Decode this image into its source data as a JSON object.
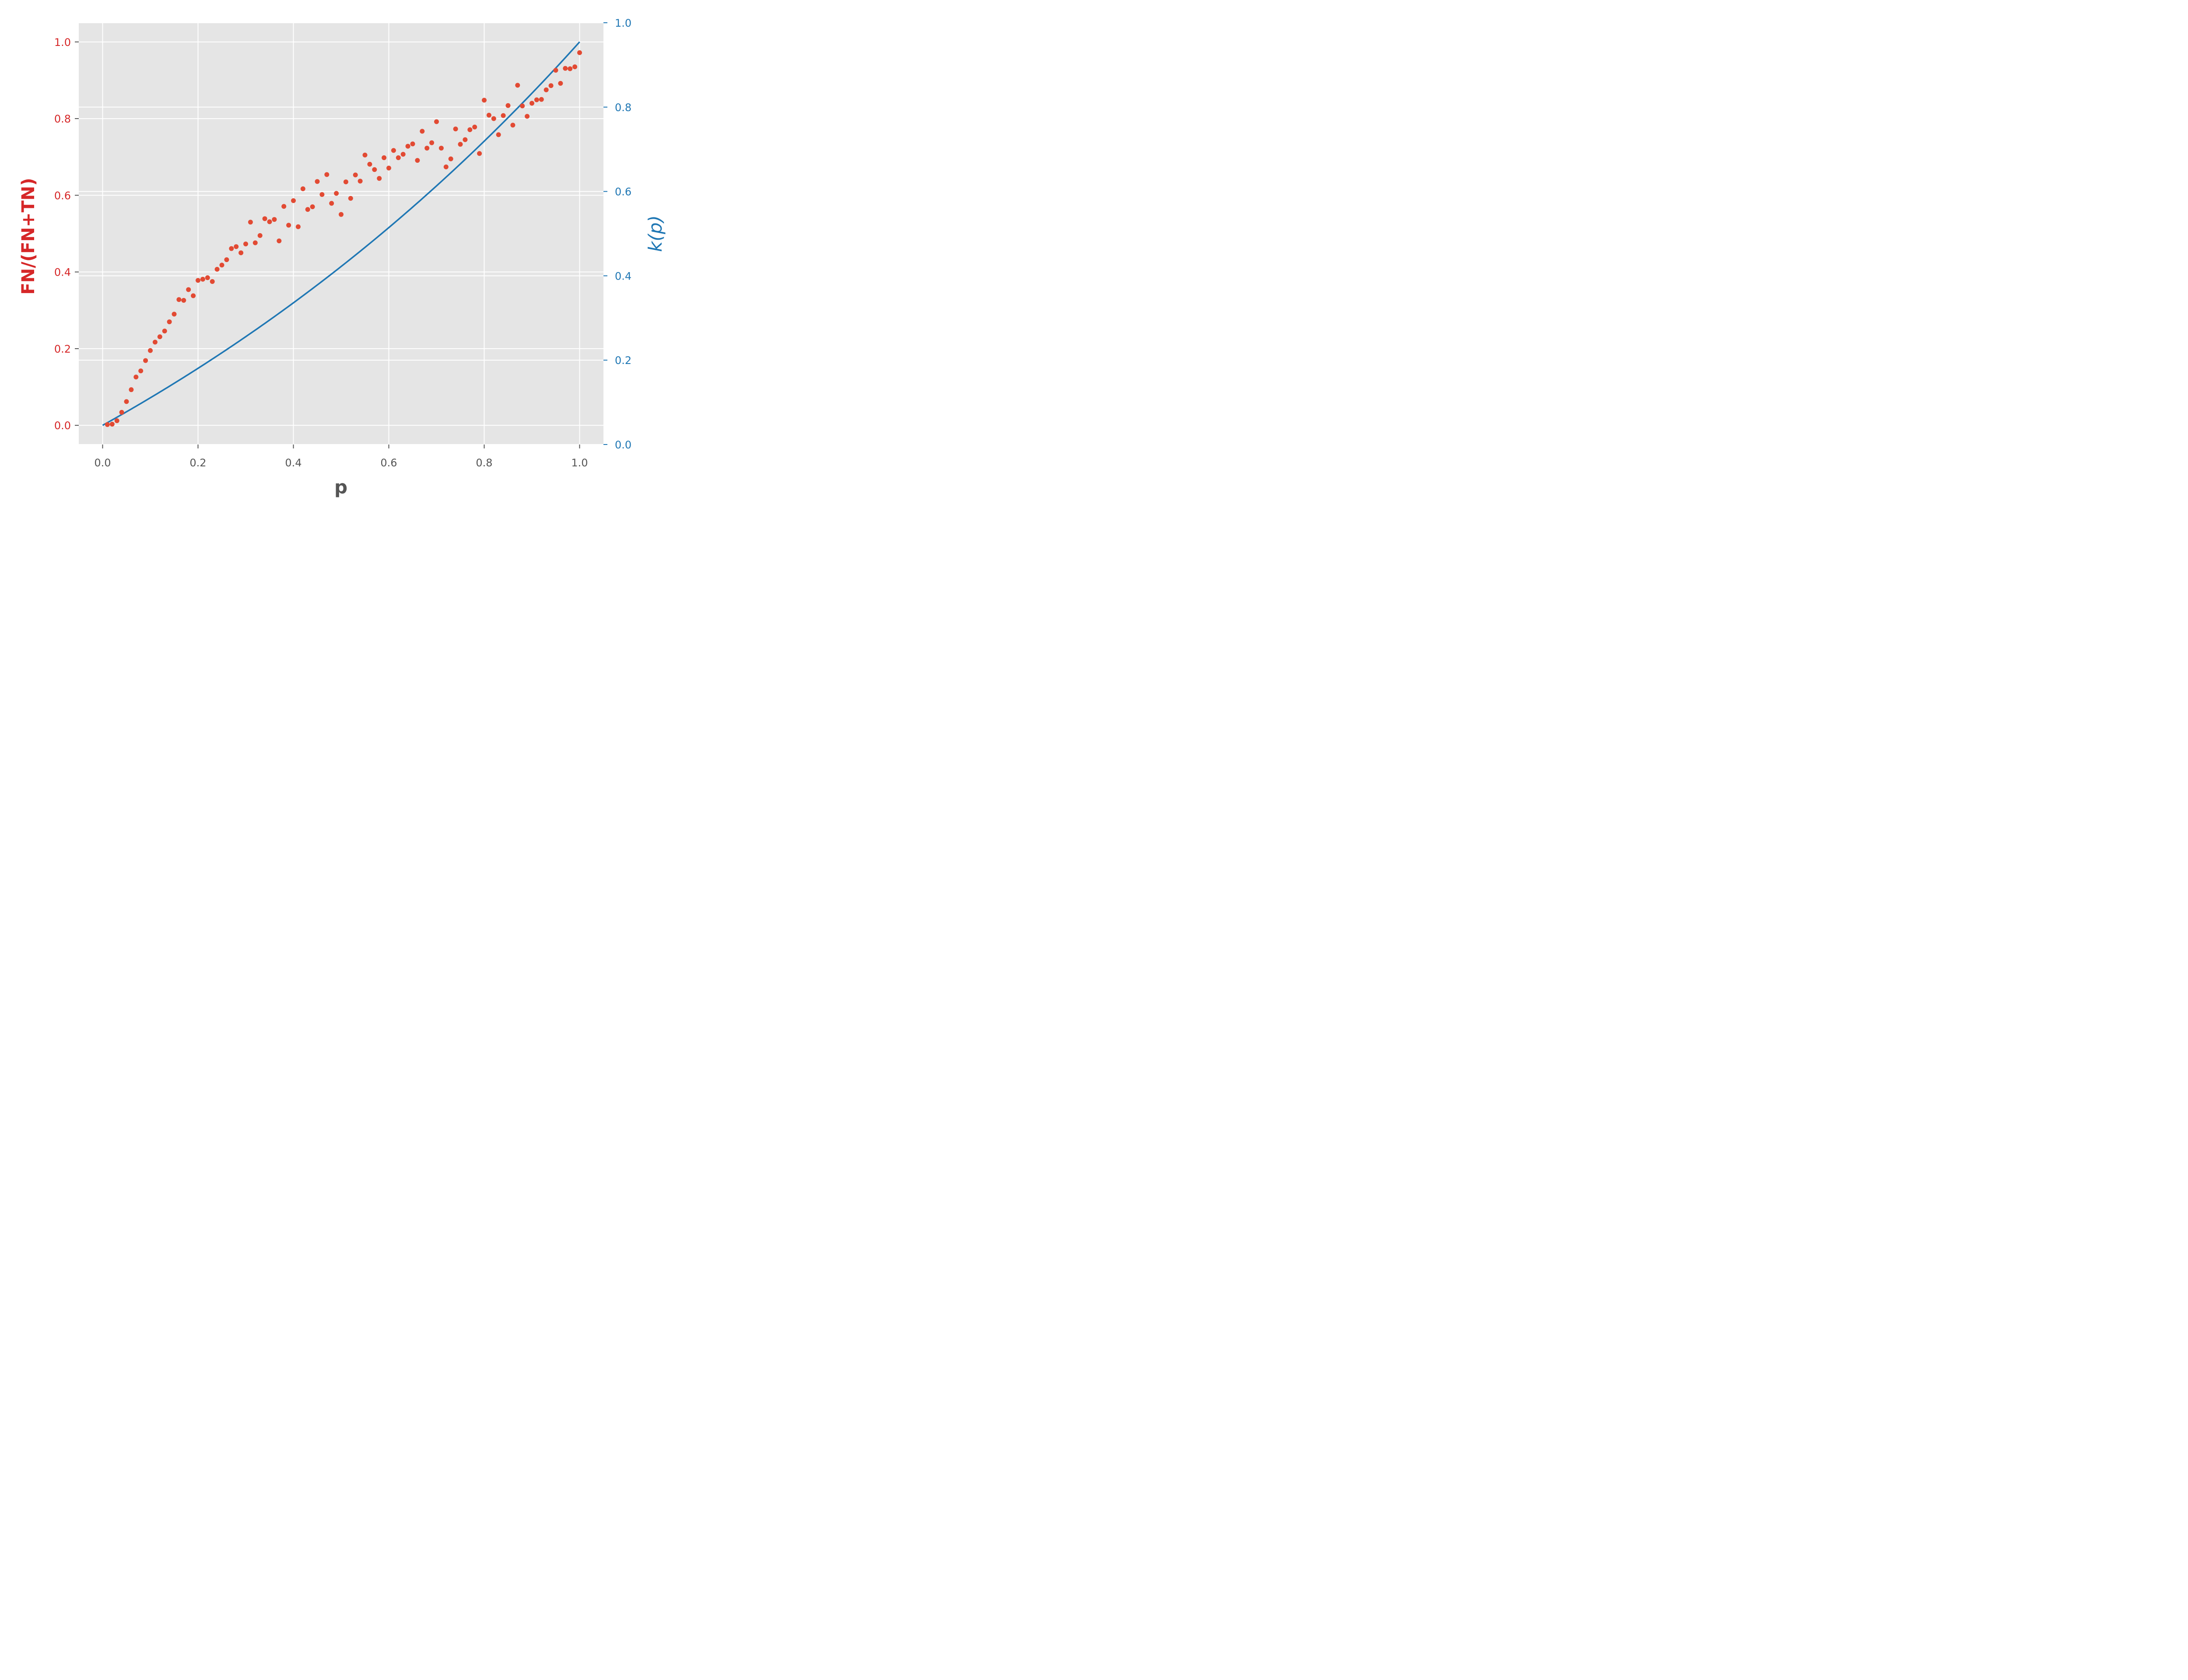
{
  "colors": {
    "background": "#ffffff",
    "panel": "#e5e5e5",
    "grid": "#ffffff",
    "scatter": "#e24a33",
    "left_axis": "#d62728",
    "right_axis": "#1f77b4",
    "bottom_axis": "#555555",
    "line": "#1f77b4"
  },
  "chart_data": {
    "type": "scatter",
    "xlabel": "p",
    "ylabel_left": "FN/(FN+TN)",
    "ylabel_right": "k(p)",
    "xlim": [
      -0.05,
      1.05
    ],
    "ylim_left": [
      -0.05,
      1.05
    ],
    "ylim_right": [
      0.0,
      1.0
    ],
    "xticks": [
      "0.0",
      "0.2",
      "0.4",
      "0.6",
      "0.8",
      "1.0"
    ],
    "yticks_left": [
      "0.0",
      "0.2",
      "0.4",
      "0.6",
      "0.8",
      "1.0"
    ],
    "yticks_right": [
      "0.0",
      "0.2",
      "0.4",
      "0.6",
      "0.8",
      "1.0"
    ],
    "grid": true,
    "series": [
      {
        "type": "scatter",
        "axis": "left",
        "x": [
          0.01,
          0.02,
          0.03,
          0.04,
          0.05,
          0.06,
          0.07,
          0.08,
          0.09,
          0.1,
          0.11,
          0.12,
          0.13,
          0.14,
          0.15,
          0.16,
          0.17,
          0.18,
          0.19,
          0.2,
          0.21,
          0.22,
          0.23,
          0.24,
          0.25,
          0.26,
          0.27,
          0.28,
          0.29,
          0.3,
          0.31,
          0.32,
          0.33,
          0.34,
          0.35,
          0.36,
          0.37,
          0.38,
          0.39,
          0.4,
          0.41,
          0.42,
          0.43,
          0.44,
          0.45,
          0.46,
          0.47,
          0.48,
          0.49,
          0.5,
          0.51,
          0.52,
          0.53,
          0.54,
          0.55,
          0.56,
          0.57,
          0.58,
          0.59,
          0.6,
          0.61,
          0.62,
          0.63,
          0.64,
          0.65,
          0.66,
          0.67,
          0.68,
          0.69,
          0.7,
          0.71,
          0.72,
          0.73,
          0.74,
          0.75,
          0.76,
          0.77,
          0.78,
          0.79,
          0.8,
          0.81,
          0.82,
          0.83,
          0.84,
          0.85,
          0.86,
          0.87,
          0.88,
          0.89,
          0.9,
          0.91,
          0.92,
          0.93,
          0.94,
          0.95,
          0.96,
          0.97,
          0.98,
          0.99,
          1.0
        ],
        "y": [
          0.002,
          0.003,
          0.012,
          0.034,
          0.062,
          0.093,
          0.126,
          0.142,
          0.169,
          0.195,
          0.217,
          0.231,
          0.246,
          0.27,
          0.29,
          0.328,
          0.326,
          0.354,
          0.338,
          0.378,
          0.381,
          0.385,
          0.375,
          0.407,
          0.418,
          0.432,
          0.461,
          0.466,
          0.45,
          0.473,
          0.53,
          0.476,
          0.495,
          0.539,
          0.531,
          0.537,
          0.481,
          0.571,
          0.522,
          0.586,
          0.518,
          0.617,
          0.563,
          0.57,
          0.636,
          0.602,
          0.654,
          0.579,
          0.605,
          0.55,
          0.635,
          0.592,
          0.653,
          0.637,
          0.705,
          0.681,
          0.667,
          0.644,
          0.698,
          0.671,
          0.717,
          0.698,
          0.707,
          0.728,
          0.734,
          0.691,
          0.767,
          0.723,
          0.737,
          0.792,
          0.723,
          0.674,
          0.695,
          0.773,
          0.733,
          0.745,
          0.771,
          0.778,
          0.709,
          0.848,
          0.809,
          0.8,
          0.758,
          0.808,
          0.834,
          0.783,
          0.887,
          0.833,
          0.806,
          0.84,
          0.849,
          0.85,
          0.875,
          0.886,
          0.926,
          0.892,
          0.931,
          0.93,
          0.935,
          0.972
        ]
      },
      {
        "type": "line",
        "axis": "left",
        "function": "k(p) = (exp(ln 2 * p) - 1)",
        "x_range": [
          0.0,
          1.0
        ]
      }
    ]
  }
}
